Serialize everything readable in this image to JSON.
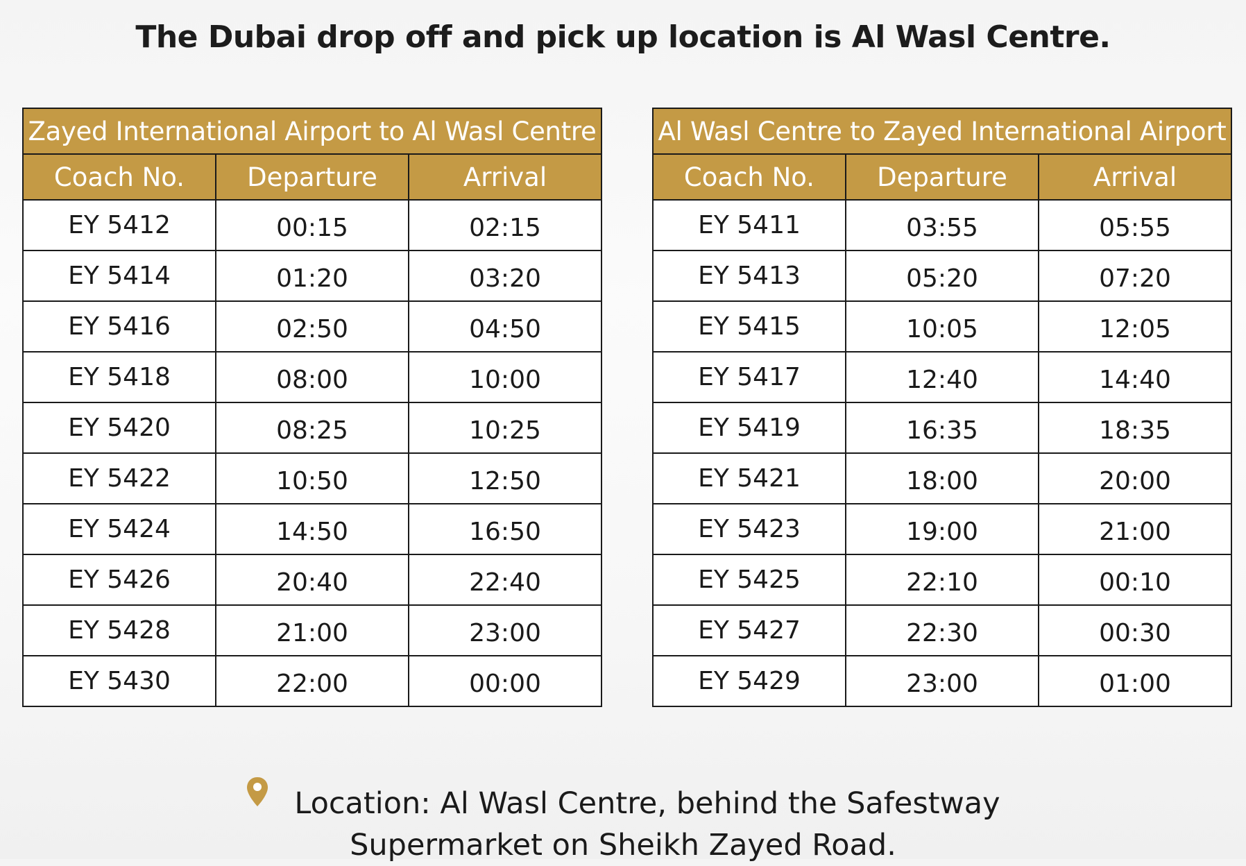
{
  "headline": "The Dubai drop off and pick up location is Al Wasl Centre.",
  "tables": [
    {
      "title": "Zayed International Airport to Al Wasl Centre",
      "headers": [
        "Coach No.",
        "Departure",
        "Arrival"
      ],
      "rows": [
        [
          "EY 5412",
          "00:15",
          "02:15"
        ],
        [
          "EY 5414",
          "01:20",
          "03:20"
        ],
        [
          "EY 5416",
          "02:50",
          "04:50"
        ],
        [
          "EY 5418",
          "08:00",
          "10:00"
        ],
        [
          "EY 5420",
          "08:25",
          "10:25"
        ],
        [
          "EY 5422",
          "10:50",
          "12:50"
        ],
        [
          "EY 5424",
          "14:50",
          "16:50"
        ],
        [
          "EY 5426",
          "20:40",
          "22:40"
        ],
        [
          "EY 5428",
          "21:00",
          "23:00"
        ],
        [
          "EY 5430",
          "22:00",
          "00:00"
        ]
      ]
    },
    {
      "title": "Al Wasl Centre to Zayed International Airport",
      "headers": [
        "Coach No.",
        "Departure",
        "Arrival"
      ],
      "rows": [
        [
          "EY 5411",
          "03:55",
          "05:55"
        ],
        [
          "EY 5413",
          "05:20",
          "07:20"
        ],
        [
          "EY 5415",
          "10:05",
          "12:05"
        ],
        [
          "EY 5417",
          "12:40",
          "14:40"
        ],
        [
          "EY 5419",
          "16:35",
          "18:35"
        ],
        [
          "EY 5421",
          "18:00",
          "20:00"
        ],
        [
          "EY 5423",
          "19:00",
          "21:00"
        ],
        [
          "EY 5425",
          "22:10",
          "00:10"
        ],
        [
          "EY 5427",
          "22:30",
          "00:30"
        ],
        [
          "EY 5429",
          "23:00",
          "01:00"
        ]
      ]
    }
  ],
  "location": {
    "icon": "location-pin-icon",
    "line1": "Location: Al Wasl Centre, behind the Safestway",
    "line2": "Supermarket on Sheikh Zayed Road."
  },
  "colors": {
    "accent": "#c49a45",
    "border": "#1a1a1a",
    "text": "#1a1a1a",
    "header_text": "#ffffff"
  }
}
